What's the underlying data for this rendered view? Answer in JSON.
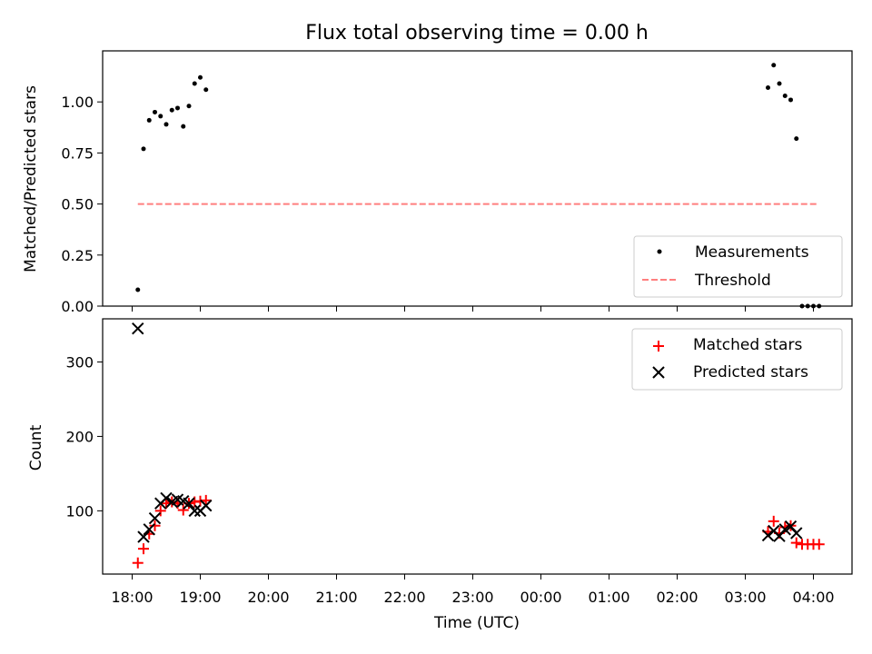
{
  "chart_data": [
    {
      "type": "scatter",
      "title": "Flux total observing time = 0.00 h",
      "xlabel": "",
      "ylabel": "Matched/Predicted stars",
      "ylim": [
        0,
        1.25
      ],
      "yticks": [
        0.0,
        0.25,
        0.5,
        0.75,
        1.0
      ],
      "ytick_labels": [
        "0.00",
        "0.25",
        "0.50",
        "0.75",
        "1.00"
      ],
      "legend_position": "lower-right",
      "series": [
        {
          "name": "Measurements",
          "marker": "dot",
          "color": "#000000",
          "x": [
            "18:05",
            "18:10",
            "18:15",
            "18:20",
            "18:25",
            "18:30",
            "18:35",
            "18:40",
            "18:45",
            "18:50",
            "18:55",
            "19:00",
            "19:05",
            "03:20",
            "03:25",
            "03:30",
            "03:35",
            "03:40",
            "03:45",
            "03:50",
            "03:55",
            "04:00",
            "04:05"
          ],
          "y": [
            0.08,
            0.77,
            0.91,
            0.95,
            0.93,
            0.89,
            0.96,
            0.97,
            0.88,
            0.98,
            1.09,
            1.12,
            1.06,
            1.07,
            1.18,
            1.09,
            1.03,
            1.01,
            0.82,
            0.0,
            0.0,
            0.0,
            0.0
          ]
        },
        {
          "name": "Threshold",
          "marker": "dashed-line",
          "color": "#ff7f7f",
          "x": [
            "18:05",
            "04:05"
          ],
          "y": [
            0.5,
            0.5
          ]
        }
      ]
    },
    {
      "type": "scatter",
      "title": "",
      "xlabel": "Time (UTC)",
      "ylabel": "Count",
      "ylim": [
        15,
        358
      ],
      "yticks": [
        100,
        200,
        300
      ],
      "ytick_labels": [
        "100",
        "200",
        "300"
      ],
      "xtick_labels": [
        "18:00",
        "19:00",
        "20:00",
        "21:00",
        "22:00",
        "23:00",
        "00:00",
        "01:00",
        "02:00",
        "03:00",
        "04:00"
      ],
      "legend_position": "upper-right",
      "series": [
        {
          "name": "Matched stars",
          "marker": "plus",
          "color": "#ff0000",
          "x": [
            "18:05",
            "18:10",
            "18:15",
            "18:20",
            "18:25",
            "18:30",
            "18:35",
            "18:40",
            "18:45",
            "18:50",
            "18:55",
            "19:00",
            "19:05",
            "03:20",
            "03:25",
            "03:30",
            "03:35",
            "03:40",
            "03:45",
            "03:50",
            "03:55",
            "04:00",
            "04:05"
          ],
          "y": [
            30,
            49,
            69,
            80,
            100,
            110,
            112,
            110,
            101,
            110,
            112,
            113,
            114,
            72,
            86,
            70,
            78,
            80,
            57,
            55,
            55,
            55,
            55
          ]
        },
        {
          "name": "Predicted stars",
          "marker": "x",
          "color": "#000000",
          "x": [
            "18:05",
            "18:10",
            "18:15",
            "18:20",
            "18:25",
            "18:30",
            "18:35",
            "18:40",
            "18:45",
            "18:50",
            "18:55",
            "19:00",
            "19:05",
            "03:20",
            "03:25",
            "03:30",
            "03:35",
            "03:40",
            "03:45"
          ],
          "y": [
            345,
            65,
            75,
            90,
            110,
            117,
            112,
            115,
            113,
            110,
            100,
            100,
            107,
            67,
            73,
            66,
            75,
            79,
            70
          ]
        }
      ]
    }
  ]
}
